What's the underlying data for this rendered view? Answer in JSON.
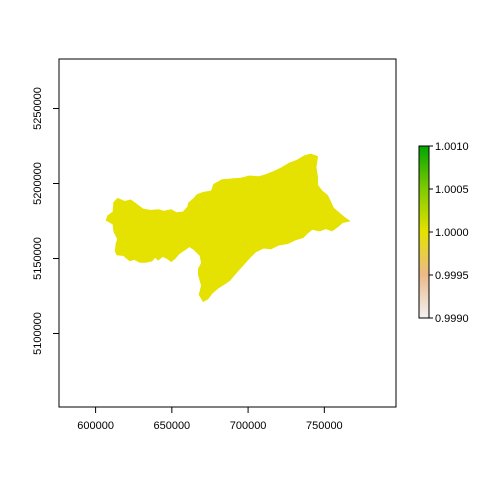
{
  "chart_data": {
    "type": "raster-map",
    "x_ticks": [
      {
        "value": 600000,
        "label": "600000"
      },
      {
        "value": 650000,
        "label": "650000"
      },
      {
        "value": 700000,
        "label": "700000"
      },
      {
        "value": 750000,
        "label": "750000"
      }
    ],
    "y_ticks": [
      {
        "value": 5100000,
        "label": "5100000"
      },
      {
        "value": 5150000,
        "label": "5150000"
      },
      {
        "value": 5200000,
        "label": "5200000"
      },
      {
        "value": 5250000,
        "label": "5250000"
      }
    ],
    "xlim": [
      576000,
      797000
    ],
    "ylim": [
      5051000,
      5283000
    ],
    "raster_value": 1.0,
    "fill_color": "#E5E100",
    "legend": {
      "range": [
        0.999,
        1.001
      ],
      "ticks": [
        {
          "value": 1.001,
          "label": "1.0010"
        },
        {
          "value": 1.0005,
          "label": "1.0005"
        },
        {
          "value": 1.0,
          "label": "1.0000"
        },
        {
          "value": 0.9995,
          "label": "0.9995"
        },
        {
          "value": 0.999,
          "label": "0.9990"
        }
      ],
      "colors": [
        "#F2F2F2",
        "#EBB98A",
        "#E5E100",
        "#7FCB00",
        "#00A600"
      ]
    },
    "region_outline": [
      [
        611500,
        5173000
      ],
      [
        612000,
        5168000
      ],
      [
        614500,
        5163000
      ],
      [
        613500,
        5160000
      ],
      [
        613000,
        5155000
      ],
      [
        614000,
        5152500
      ],
      [
        618500,
        5152000
      ],
      [
        620000,
        5150500
      ],
      [
        622500,
        5148500
      ],
      [
        625500,
        5149500
      ],
      [
        629000,
        5147500
      ],
      [
        633000,
        5147500
      ],
      [
        637000,
        5148500
      ],
      [
        639000,
        5151000
      ],
      [
        641000,
        5149000
      ],
      [
        644000,
        5151500
      ],
      [
        647000,
        5150000
      ],
      [
        649500,
        5148000
      ],
      [
        652000,
        5150000
      ],
      [
        654500,
        5153000
      ],
      [
        658000,
        5155500
      ],
      [
        661500,
        5158000
      ],
      [
        664500,
        5156000
      ],
      [
        668500,
        5152000
      ],
      [
        669500,
        5147000
      ],
      [
        667500,
        5143000
      ],
      [
        667500,
        5139000
      ],
      [
        669500,
        5132000
      ],
      [
        668000,
        5126000
      ],
      [
        670500,
        5121500
      ],
      [
        673500,
        5123000
      ],
      [
        676500,
        5127000
      ],
      [
        680500,
        5130500
      ],
      [
        684500,
        5133000
      ],
      [
        688000,
        5135500
      ],
      [
        693000,
        5141500
      ],
      [
        697500,
        5146500
      ],
      [
        701000,
        5150500
      ],
      [
        705000,
        5154500
      ],
      [
        710000,
        5157000
      ],
      [
        715000,
        5156500
      ],
      [
        720000,
        5159000
      ],
      [
        726000,
        5160000
      ],
      [
        731000,
        5162500
      ],
      [
        736000,
        5164000
      ],
      [
        739000,
        5167000
      ],
      [
        742000,
        5169500
      ],
      [
        747000,
        5168500
      ],
      [
        751000,
        5170000
      ],
      [
        755000,
        5168500
      ],
      [
        759000,
        5171500
      ],
      [
        762000,
        5174000
      ],
      [
        766500,
        5175000
      ],
      [
        763000,
        5177500
      ],
      [
        759500,
        5180500
      ],
      [
        756000,
        5183500
      ],
      [
        754000,
        5188000
      ],
      [
        752000,
        5192000
      ],
      [
        748500,
        5195000
      ],
      [
        745500,
        5199000
      ],
      [
        745500,
        5204000
      ],
      [
        744500,
        5211000
      ],
      [
        745500,
        5218000
      ],
      [
        741000,
        5219500
      ],
      [
        737000,
        5218500
      ],
      [
        732000,
        5215500
      ],
      [
        727000,
        5213500
      ],
      [
        722000,
        5210500
      ],
      [
        717000,
        5208000
      ],
      [
        712000,
        5206000
      ],
      [
        707000,
        5204500
      ],
      [
        701000,
        5205000
      ],
      [
        695000,
        5203500
      ],
      [
        689000,
        5203000
      ],
      [
        683000,
        5202500
      ],
      [
        677500,
        5199500
      ],
      [
        676000,
        5195000
      ],
      [
        670500,
        5194000
      ],
      [
        666500,
        5192500
      ],
      [
        664500,
        5190000
      ],
      [
        661000,
        5187000
      ],
      [
        660500,
        5184500
      ],
      [
        657500,
        5181000
      ],
      [
        653000,
        5180500
      ],
      [
        649500,
        5182500
      ],
      [
        645000,
        5181500
      ],
      [
        641000,
        5182500
      ],
      [
        636000,
        5182000
      ],
      [
        631000,
        5183000
      ],
      [
        627000,
        5186000
      ],
      [
        623000,
        5189000
      ],
      [
        619000,
        5188000
      ],
      [
        614500,
        5190000
      ],
      [
        612000,
        5187500
      ],
      [
        611500,
        5181000
      ],
      [
        608000,
        5178500
      ],
      [
        607000,
        5175500
      ],
      [
        611500,
        5173000
      ]
    ]
  }
}
